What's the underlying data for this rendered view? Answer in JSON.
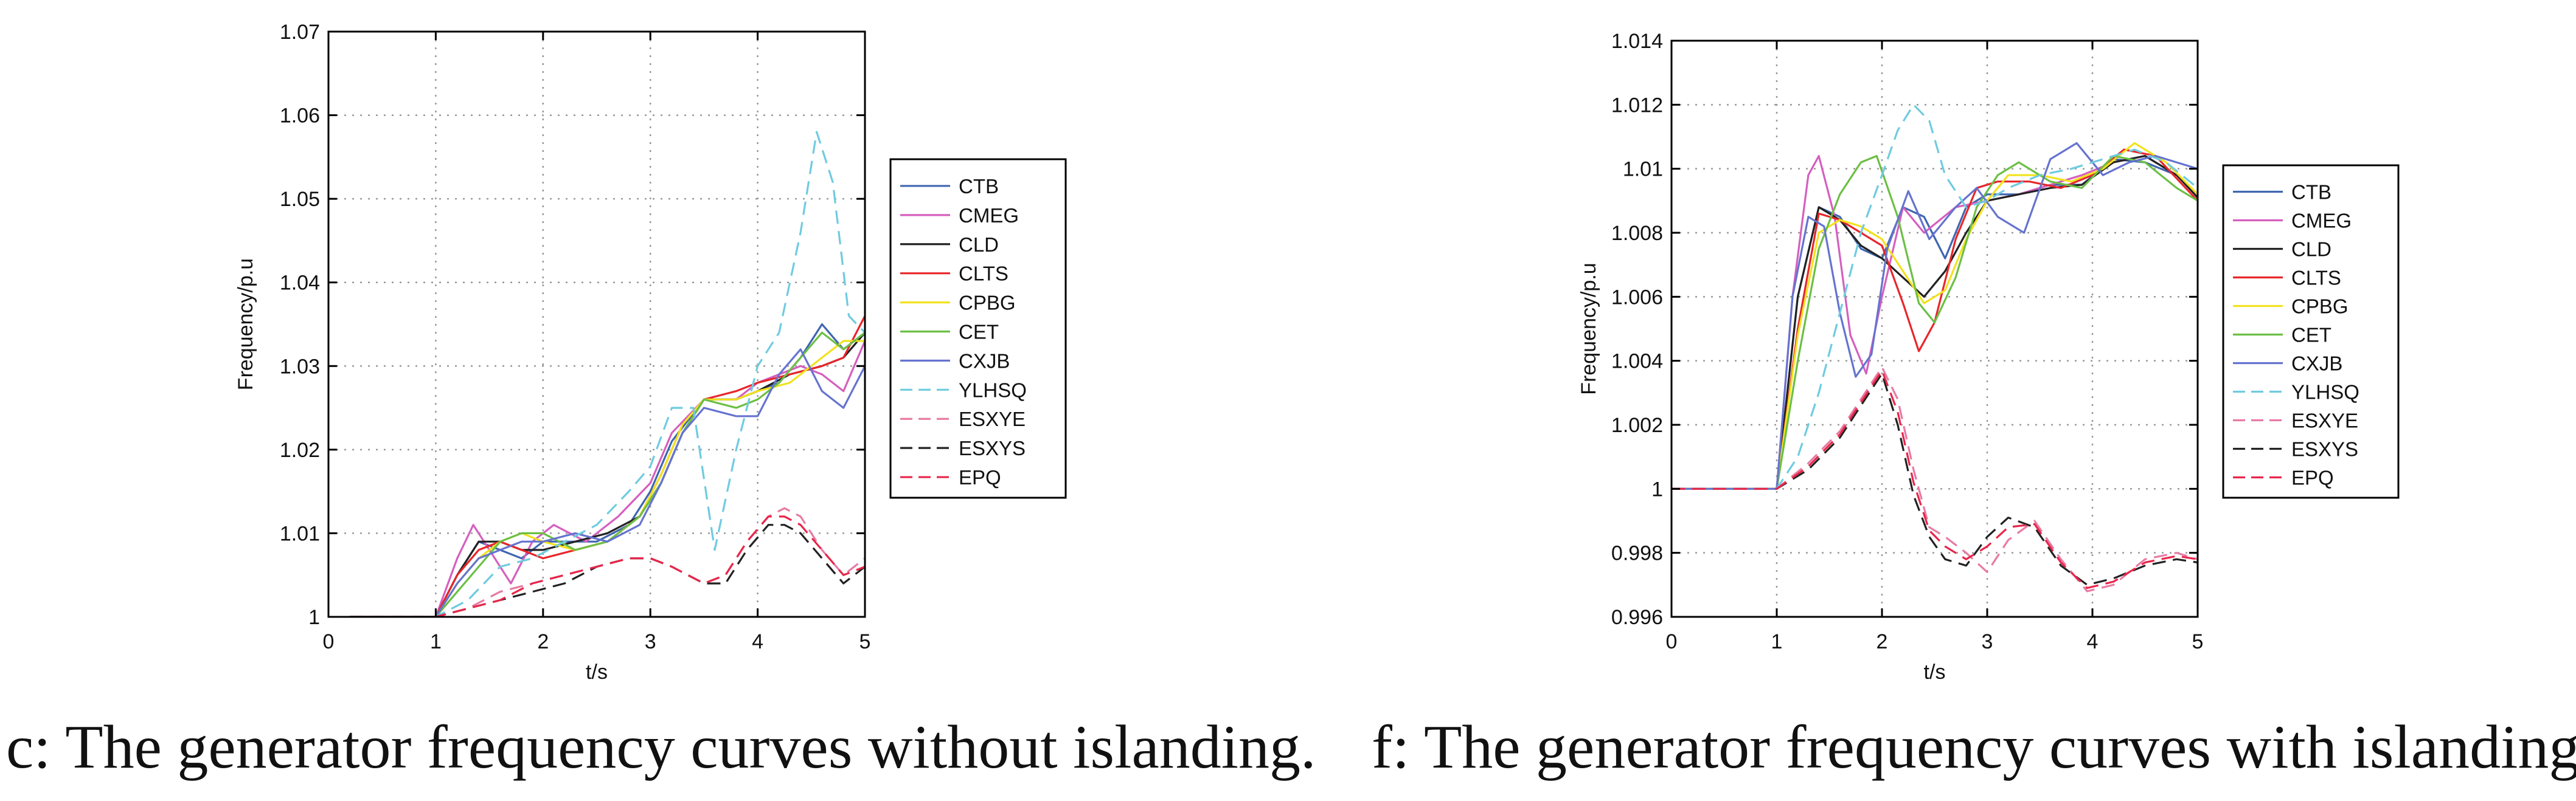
{
  "colors": {
    "CTB": "#3f66b0",
    "CMEG": "#d55fbf",
    "CLD": "#222222",
    "CLTS": "#e8262a",
    "CPBG": "#f2e21e",
    "CET": "#6cbf45",
    "CXJB": "#6573cf",
    "YLHSQ": "#6fcbe0",
    "ESXYE": "#e77ba4",
    "ESXYS": "#222222",
    "EPQ": "#e8264a"
  },
  "captions": {
    "left": "c: The generator frequency curves without islanding.",
    "right": "f: The generator frequency curves with islanding."
  },
  "chart_data": [
    {
      "type": "line",
      "xlabel": "t/s",
      "ylabel": "Frequency/p.u",
      "xlim": [
        0,
        5
      ],
      "ylim": [
        1,
        1.07
      ],
      "xticks": [
        "0",
        "1",
        "2",
        "3",
        "4",
        "5"
      ],
      "yticks": [
        "1",
        "1.01",
        "1.02",
        "1.03",
        "1.04",
        "1.05",
        "1.06",
        "1.07"
      ],
      "grid": true,
      "legend_position": "right-outside",
      "series": [
        {
          "name": "CTB",
          "style": "solid",
          "x": [
            0.2,
            1,
            1.2,
            1.4,
            1.6,
            1.8,
            2,
            2.2,
            2.5,
            2.8,
            3,
            3.2,
            3.5,
            3.8,
            4,
            4.2,
            4.4,
            4.6,
            4.8,
            5
          ],
          "y": [
            1,
            1,
            1.005,
            1.009,
            1.008,
            1.007,
            1.009,
            1.009,
            1.009,
            1.011,
            1.015,
            1.021,
            1.026,
            1.026,
            1.027,
            1.028,
            1.031,
            1.035,
            1.032,
            1.034
          ]
        },
        {
          "name": "CMEG",
          "style": "solid",
          "x": [
            0.2,
            1,
            1.2,
            1.35,
            1.5,
            1.7,
            1.9,
            2.1,
            2.4,
            2.7,
            3,
            3.2,
            3.5,
            3.8,
            4,
            4.2,
            4.4,
            4.6,
            4.8,
            5
          ],
          "y": [
            1,
            1,
            1.007,
            1.011,
            1.008,
            1.004,
            1.009,
            1.011,
            1.009,
            1.012,
            1.016,
            1.022,
            1.026,
            1.026,
            1.028,
            1.029,
            1.03,
            1.029,
            1.027,
            1.033
          ]
        },
        {
          "name": "CLD",
          "style": "solid",
          "x": [
            0.2,
            1,
            1.2,
            1.4,
            1.6,
            1.8,
            2,
            2.3,
            2.6,
            2.9,
            3.1,
            3.3,
            3.5,
            3.8,
            4,
            4.3,
            4.6,
            4.8,
            5
          ],
          "y": [
            1,
            1,
            1.005,
            1.009,
            1.009,
            1.008,
            1.008,
            1.009,
            1.01,
            1.012,
            1.016,
            1.022,
            1.026,
            1.026,
            1.027,
            1.029,
            1.03,
            1.031,
            1.034
          ]
        },
        {
          "name": "CLTS",
          "style": "solid",
          "x": [
            0.2,
            1,
            1.2,
            1.4,
            1.6,
            1.8,
            2,
            2.3,
            2.6,
            2.9,
            3.1,
            3.3,
            3.5,
            3.8,
            4,
            4.3,
            4.6,
            4.8,
            5
          ],
          "y": [
            1,
            1,
            1.005,
            1.008,
            1.009,
            1.008,
            1.007,
            1.008,
            1.009,
            1.012,
            1.017,
            1.023,
            1.026,
            1.027,
            1.028,
            1.029,
            1.03,
            1.031,
            1.036
          ]
        },
        {
          "name": "CPBG",
          "style": "solid",
          "x": [
            0.2,
            1,
            1.2,
            1.4,
            1.6,
            1.8,
            2,
            2.3,
            2.6,
            2.9,
            3.1,
            3.3,
            3.5,
            3.8,
            4,
            4.3,
            4.6,
            4.8,
            5
          ],
          "y": [
            1,
            1,
            1.004,
            1.007,
            1.009,
            1.01,
            1.009,
            1.008,
            1.009,
            1.012,
            1.017,
            1.023,
            1.026,
            1.026,
            1.027,
            1.028,
            1.031,
            1.033,
            1.033
          ]
        },
        {
          "name": "CET",
          "style": "solid",
          "x": [
            0.2,
            1,
            1.2,
            1.4,
            1.6,
            1.8,
            2,
            2.3,
            2.6,
            2.9,
            3.1,
            3.3,
            3.5,
            3.8,
            4,
            4.2,
            4.4,
            4.6,
            4.8,
            5
          ],
          "y": [
            1,
            1,
            1.003,
            1.006,
            1.009,
            1.01,
            1.01,
            1.008,
            1.009,
            1.012,
            1.016,
            1.022,
            1.026,
            1.025,
            1.026,
            1.028,
            1.031,
            1.034,
            1.032,
            1.034
          ]
        },
        {
          "name": "CXJB",
          "style": "solid",
          "x": [
            0.2,
            1,
            1.2,
            1.4,
            1.6,
            1.8,
            2,
            2.3,
            2.6,
            2.9,
            3.1,
            3.3,
            3.5,
            3.8,
            4,
            4.2,
            4.4,
            4.6,
            4.8,
            5
          ],
          "y": [
            1,
            1,
            1.004,
            1.007,
            1.008,
            1.009,
            1.009,
            1.01,
            1.009,
            1.011,
            1.016,
            1.022,
            1.025,
            1.024,
            1.024,
            1.029,
            1.032,
            1.027,
            1.025,
            1.03
          ]
        },
        {
          "name": "YLHSQ",
          "style": "dashed",
          "x": [
            0.2,
            1,
            1.3,
            1.6,
            1.9,
            2.2,
            2.5,
            2.8,
            3,
            3.2,
            3.4,
            3.6,
            3.8,
            4,
            4.2,
            4.4,
            4.55,
            4.7,
            4.85,
            5
          ],
          "y": [
            1,
            1,
            1.002,
            1.006,
            1.007,
            1.009,
            1.011,
            1.015,
            1.018,
            1.025,
            1.025,
            1.008,
            1.02,
            1.03,
            1.034,
            1.046,
            1.058,
            1.052,
            1.036,
            1.034
          ]
        },
        {
          "name": "ESXYE",
          "style": "dashed",
          "x": [
            0.2,
            1,
            1.3,
            1.6,
            1.9,
            2.2,
            2.5,
            2.8,
            3,
            3.2,
            3.5,
            3.7,
            3.9,
            4.1,
            4.25,
            4.4,
            4.6,
            4.8,
            5
          ],
          "y": [
            1,
            1,
            1.001,
            1.003,
            1.004,
            1.005,
            1.006,
            1.007,
            1.007,
            1.006,
            1.004,
            1.005,
            1.009,
            1.012,
            1.013,
            1.012,
            1.008,
            1.005,
            1.007
          ]
        },
        {
          "name": "ESXYS",
          "style": "dashed",
          "x": [
            0.2,
            1,
            1.3,
            1.6,
            1.9,
            2.2,
            2.5,
            2.8,
            3,
            3.2,
            3.5,
            3.7,
            3.9,
            4.1,
            4.25,
            4.4,
            4.6,
            4.8,
            5
          ],
          "y": [
            1,
            1,
            1.001,
            1.002,
            1.003,
            1.004,
            1.006,
            1.007,
            1.007,
            1.006,
            1.004,
            1.004,
            1.008,
            1.011,
            1.011,
            1.01,
            1.007,
            1.004,
            1.006
          ]
        },
        {
          "name": "EPQ",
          "style": "dashed",
          "x": [
            0.2,
            1,
            1.3,
            1.6,
            1.9,
            2.2,
            2.5,
            2.8,
            3,
            3.2,
            3.5,
            3.7,
            3.9,
            4.1,
            4.25,
            4.4,
            4.6,
            4.8,
            5
          ],
          "y": [
            1,
            1,
            1.001,
            1.002,
            1.004,
            1.005,
            1.006,
            1.007,
            1.007,
            1.006,
            1.004,
            1.005,
            1.009,
            1.012,
            1.012,
            1.011,
            1.008,
            1.005,
            1.006
          ]
        }
      ]
    },
    {
      "type": "line",
      "xlabel": "t/s",
      "ylabel": "Frequency/p.u",
      "xlim": [
        0,
        5
      ],
      "ylim": [
        0.996,
        1.014
      ],
      "xticks": [
        "0",
        "1",
        "2",
        "3",
        "4",
        "5"
      ],
      "yticks": [
        "0.996",
        "0.998",
        "1",
        "1.002",
        "1.004",
        "1.006",
        "1.008",
        "1.01",
        "1.012",
        "1.014"
      ],
      "grid": true,
      "legend_position": "right-outside",
      "series": [
        {
          "name": "CTB",
          "style": "solid",
          "x": [
            0,
            1,
            1.2,
            1.4,
            1.6,
            1.8,
            2,
            2.2,
            2.4,
            2.6,
            2.8,
            3,
            3.3,
            3.6,
            3.9,
            4.2,
            4.5,
            4.8,
            5
          ],
          "y": [
            1,
            1,
            1.006,
            1.0088,
            1.0085,
            1.0075,
            1.0072,
            1.0088,
            1.0085,
            1.0072,
            1.0088,
            1.0092,
            1.0092,
            1.0095,
            1.0095,
            1.0103,
            1.0102,
            1.0098,
            1.0092
          ]
        },
        {
          "name": "CMEG",
          "style": "solid",
          "x": [
            0,
            1,
            1.15,
            1.3,
            1.4,
            1.55,
            1.7,
            1.85,
            2,
            2.2,
            2.4,
            2.7,
            3,
            3.3,
            3.6,
            3.9,
            4.2,
            4.5,
            4.8,
            5
          ],
          "y": [
            1,
            1,
            1.006,
            1.0098,
            1.0104,
            1.0085,
            1.0048,
            1.0036,
            1.006,
            1.0088,
            1.008,
            1.0088,
            1.009,
            1.0092,
            1.0095,
            1.0098,
            1.0102,
            1.0104,
            1.0098,
            1.0092
          ]
        },
        {
          "name": "CLD",
          "style": "solid",
          "x": [
            0,
            1,
            1.2,
            1.4,
            1.6,
            1.8,
            2,
            2.2,
            2.4,
            2.6,
            2.8,
            3,
            3.3,
            3.6,
            3.9,
            4.2,
            4.5,
            4.8,
            5
          ],
          "y": [
            1,
            1,
            1.006,
            1.0088,
            1.0084,
            1.0076,
            1.0072,
            1.0066,
            1.006,
            1.0068,
            1.008,
            1.009,
            1.0092,
            1.0094,
            1.0095,
            1.0102,
            1.0104,
            1.0098,
            1.0091
          ]
        },
        {
          "name": "CLTS",
          "style": "solid",
          "x": [
            0,
            1,
            1.2,
            1.4,
            1.6,
            1.8,
            2,
            2.2,
            2.35,
            2.5,
            2.7,
            2.9,
            3.1,
            3.4,
            3.7,
            4,
            4.3,
            4.6,
            4.8,
            5
          ],
          "y": [
            1,
            1,
            1.005,
            1.0086,
            1.0084,
            1.008,
            1.0076,
            1.0058,
            1.0043,
            1.0052,
            1.0078,
            1.0094,
            1.0096,
            1.0096,
            1.0094,
            1.0098,
            1.0106,
            1.0104,
            1.0097,
            1.009
          ]
        },
        {
          "name": "CPBG",
          "style": "solid",
          "x": [
            0,
            1,
            1.2,
            1.4,
            1.6,
            1.8,
            2,
            2.2,
            2.4,
            2.6,
            2.8,
            3,
            3.2,
            3.5,
            3.8,
            4.1,
            4.4,
            4.7,
            5
          ],
          "y": [
            1,
            1,
            1.0048,
            1.008,
            1.0084,
            1.0082,
            1.0078,
            1.0068,
            1.0058,
            1.0062,
            1.0078,
            1.009,
            1.0098,
            1.0098,
            1.0096,
            1.01,
            1.0108,
            1.0102,
            1.0092
          ]
        },
        {
          "name": "CET",
          "style": "solid",
          "x": [
            0,
            1,
            1.2,
            1.4,
            1.6,
            1.8,
            1.95,
            2.15,
            2.35,
            2.5,
            2.7,
            2.9,
            3.1,
            3.3,
            3.6,
            3.9,
            4.2,
            4.5,
            4.8,
            5
          ],
          "y": [
            1,
            1,
            1.004,
            1.0075,
            1.0092,
            1.0102,
            1.0104,
            1.0085,
            1.0058,
            1.0052,
            1.0066,
            1.0088,
            1.0098,
            1.0102,
            1.0096,
            1.0094,
            1.0104,
            1.0102,
            1.0094,
            1.009
          ]
        },
        {
          "name": "CXJB",
          "style": "solid",
          "x": [
            0,
            1,
            1.15,
            1.3,
            1.45,
            1.6,
            1.75,
            1.9,
            2.05,
            2.25,
            2.45,
            2.7,
            2.9,
            3.1,
            3.35,
            3.6,
            3.85,
            4.1,
            4.35,
            4.6,
            4.8,
            5
          ],
          "y": [
            1,
            1,
            1.006,
            1.0085,
            1.0082,
            1.0055,
            1.0035,
            1.0042,
            1.0075,
            1.0093,
            1.0078,
            1.0088,
            1.0094,
            1.0085,
            1.008,
            1.0103,
            1.0108,
            1.0098,
            1.0102,
            1.0104,
            1.0102,
            1.01
          ]
        },
        {
          "name": "YLHSQ",
          "style": "dashed",
          "x": [
            0,
            1,
            1.2,
            1.4,
            1.6,
            1.8,
            2,
            2.15,
            2.3,
            2.45,
            2.6,
            2.8,
            3,
            3.2,
            3.5,
            3.8,
            4.1,
            4.4,
            4.7,
            5
          ],
          "y": [
            1,
            1,
            1.001,
            1.003,
            1.0055,
            1.008,
            1.0098,
            1.0112,
            1.012,
            1.0115,
            1.0098,
            1.0088,
            1.009,
            1.0094,
            1.0098,
            1.01,
            1.0103,
            1.0106,
            1.0102,
            1.0094
          ]
        },
        {
          "name": "ESXYE",
          "style": "dashed",
          "x": [
            0,
            1,
            1.3,
            1.6,
            1.8,
            2,
            2.15,
            2.3,
            2.45,
            2.6,
            2.8,
            3,
            3.2,
            3.45,
            3.7,
            3.95,
            4.2,
            4.5,
            4.8,
            5
          ],
          "y": [
            1,
            1,
            1.0008,
            1.0018,
            1.0028,
            1.0038,
            1.0028,
            1.0006,
            0.9988,
            0.9985,
            0.998,
            0.9974,
            0.9984,
            0.999,
            0.9978,
            0.9968,
            0.997,
            0.9978,
            0.998,
            0.9978
          ]
        },
        {
          "name": "ESXYS",
          "style": "dashed",
          "x": [
            0,
            1,
            1.3,
            1.6,
            1.8,
            2,
            2.15,
            2.3,
            2.45,
            2.6,
            2.8,
            3,
            3.2,
            3.45,
            3.7,
            3.95,
            4.2,
            4.5,
            4.8,
            5
          ],
          "y": [
            1,
            1,
            1.0006,
            1.0016,
            1.0026,
            1.0036,
            1.002,
            0.9998,
            0.9985,
            0.9978,
            0.9976,
            0.9985,
            0.9991,
            0.9988,
            0.9976,
            0.997,
            0.9972,
            0.9976,
            0.9978,
            0.9977
          ]
        },
        {
          "name": "EPQ",
          "style": "dashed",
          "x": [
            0,
            1,
            1.3,
            1.6,
            1.8,
            2,
            2.15,
            2.3,
            2.45,
            2.6,
            2.8,
            3,
            3.2,
            3.45,
            3.7,
            3.95,
            4.2,
            4.5,
            4.8,
            5
          ],
          "y": [
            1,
            1,
            1.0007,
            1.0017,
            1.0027,
            1.0037,
            1.0024,
            1.0002,
            0.9987,
            0.9982,
            0.9978,
            0.9982,
            0.9988,
            0.9989,
            0.9977,
            0.9969,
            0.9971,
            0.9977,
            0.9979,
            0.9978
          ]
        }
      ]
    }
  ]
}
